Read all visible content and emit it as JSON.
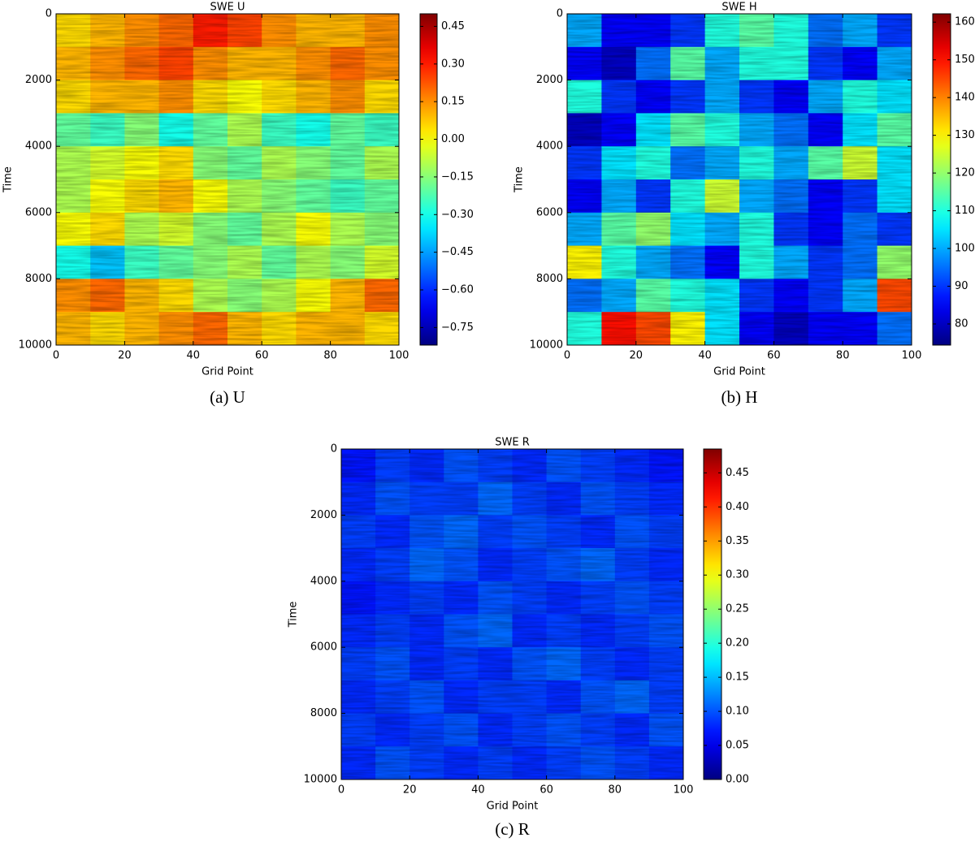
{
  "chart_data": [
    {
      "type": "heatmap",
      "title": "SWE U",
      "xlabel": "Grid Point",
      "ylabel": "Time",
      "caption": "(a) U",
      "xlim": [
        0,
        100
      ],
      "xticks": [
        0,
        20,
        40,
        60,
        80,
        100
      ],
      "ylim": [
        0,
        10000
      ],
      "y_inverted": true,
      "yticks": [
        0,
        2000,
        4000,
        6000,
        8000,
        10000
      ],
      "colormap": "jet",
      "clim": [
        -0.82,
        0.5
      ],
      "cticks": [
        {
          "value": 0.45,
          "label": "0.45"
        },
        {
          "value": 0.3,
          "label": "0.30"
        },
        {
          "value": 0.15,
          "label": "0.15"
        },
        {
          "value": 0,
          "label": "0.00"
        },
        {
          "value": -0.15,
          "label": "−0.15"
        },
        {
          "value": -0.3,
          "label": "−0.30"
        },
        {
          "value": -0.45,
          "label": "−0.45"
        },
        {
          "value": -0.6,
          "label": "−0.60"
        },
        {
          "value": -0.75,
          "label": "−0.75"
        }
      ],
      "z": [
        [
          0.05,
          0.1,
          0.15,
          0.2,
          0.3,
          0.25,
          0.15,
          0.1,
          0.1,
          0.15
        ],
        [
          0.1,
          0.15,
          0.2,
          0.25,
          0.15,
          0.1,
          0.1,
          0.15,
          0.2,
          0.15
        ],
        [
          0.05,
          0.1,
          0.1,
          0.15,
          0.05,
          0.0,
          0.05,
          0.1,
          0.15,
          0.05
        ],
        [
          -0.2,
          -0.25,
          -0.15,
          -0.3,
          -0.2,
          -0.1,
          -0.25,
          -0.3,
          -0.2,
          -0.25
        ],
        [
          -0.1,
          -0.05,
          0.0,
          0.05,
          -0.15,
          -0.2,
          -0.1,
          -0.15,
          -0.2,
          -0.1
        ],
        [
          -0.1,
          0.0,
          0.05,
          0.1,
          0.0,
          -0.1,
          -0.15,
          -0.2,
          -0.25,
          -0.2
        ],
        [
          0.0,
          0.05,
          -0.1,
          -0.05,
          -0.15,
          -0.2,
          -0.1,
          0.0,
          -0.1,
          -0.15
        ],
        [
          -0.3,
          -0.4,
          -0.25,
          -0.2,
          -0.15,
          -0.1,
          -0.2,
          -0.1,
          -0.15,
          -0.05
        ],
        [
          0.15,
          0.2,
          0.1,
          0.05,
          -0.1,
          -0.15,
          -0.1,
          0.0,
          0.1,
          0.2
        ],
        [
          0.1,
          0.05,
          0.1,
          0.15,
          0.2,
          0.1,
          0.05,
          0.1,
          0.1,
          0.05
        ]
      ]
    },
    {
      "type": "heatmap",
      "title": "SWE H",
      "xlabel": "Grid Point",
      "ylabel": "Time",
      "caption": "(b) H",
      "xlim": [
        0,
        100
      ],
      "xticks": [
        0,
        20,
        40,
        60,
        80,
        100
      ],
      "ylim": [
        0,
        10000
      ],
      "y_inverted": true,
      "yticks": [
        0,
        2000,
        4000,
        6000,
        8000,
        10000
      ],
      "colormap": "jet",
      "clim": [
        74.4,
        162.2
      ],
      "cticks": [
        160,
        150,
        140,
        130,
        120,
        110,
        100,
        90,
        80
      ],
      "z": [
        [
          100,
          85,
          85,
          90,
          110,
          115,
          110,
          95,
          100,
          90
        ],
        [
          85,
          80,
          95,
          115,
          100,
          110,
          110,
          90,
          85,
          100
        ],
        [
          110,
          90,
          85,
          90,
          100,
          90,
          85,
          100,
          110,
          105
        ],
        [
          80,
          85,
          105,
          115,
          110,
          100,
          95,
          85,
          105,
          115
        ],
        [
          90,
          105,
          110,
          95,
          100,
          110,
          100,
          115,
          125,
          105
        ],
        [
          85,
          100,
          90,
          110,
          125,
          100,
          95,
          85,
          90,
          105
        ],
        [
          100,
          115,
          120,
          105,
          100,
          110,
          90,
          85,
          95,
          90
        ],
        [
          130,
          110,
          100,
          95,
          85,
          110,
          100,
          90,
          95,
          120
        ],
        [
          95,
          100,
          115,
          110,
          105,
          90,
          85,
          90,
          100,
          145
        ],
        [
          110,
          150,
          145,
          130,
          105,
          85,
          80,
          85,
          85,
          95
        ]
      ]
    },
    {
      "type": "heatmap",
      "title": "SWE R",
      "xlabel": "Grid Point",
      "ylabel": "Time",
      "caption": "(c) R",
      "xlim": [
        0,
        100
      ],
      "xticks": [
        0,
        20,
        40,
        60,
        80,
        100
      ],
      "ylim": [
        0,
        10000
      ],
      "y_inverted": true,
      "yticks": [
        0,
        2000,
        4000,
        6000,
        8000,
        10000
      ],
      "colormap": "jet",
      "clim": [
        0,
        0.485
      ],
      "cticks": [
        {
          "value": 0.45,
          "label": "0.45"
        },
        {
          "value": 0.4,
          "label": "0.40"
        },
        {
          "value": 0.35,
          "label": "0.35"
        },
        {
          "value": 0.3,
          "label": "0.30"
        },
        {
          "value": 0.25,
          "label": "0.25"
        },
        {
          "value": 0.2,
          "label": "0.20"
        },
        {
          "value": 0.15,
          "label": "0.15"
        },
        {
          "value": 0.1,
          "label": "0.10"
        },
        {
          "value": 0.05,
          "label": "0.05"
        },
        {
          "value": 0,
          "label": "0.00"
        }
      ],
      "z": [
        [
          0.07,
          0.09,
          0.08,
          0.1,
          0.09,
          0.08,
          0.1,
          0.09,
          0.08,
          0.07
        ],
        [
          0.08,
          0.1,
          0.09,
          0.09,
          0.11,
          0.09,
          0.08,
          0.1,
          0.09,
          0.08
        ],
        [
          0.09,
          0.08,
          0.1,
          0.11,
          0.09,
          0.1,
          0.09,
          0.08,
          0.1,
          0.09
        ],
        [
          0.08,
          0.09,
          0.11,
          0.1,
          0.08,
          0.09,
          0.1,
          0.11,
          0.09,
          0.08
        ],
        [
          0.07,
          0.08,
          0.09,
          0.08,
          0.1,
          0.09,
          0.08,
          0.09,
          0.1,
          0.09
        ],
        [
          0.08,
          0.09,
          0.08,
          0.1,
          0.11,
          0.08,
          0.09,
          0.08,
          0.09,
          0.1
        ],
        [
          0.09,
          0.1,
          0.08,
          0.09,
          0.08,
          0.1,
          0.11,
          0.09,
          0.08,
          0.09
        ],
        [
          0.08,
          0.09,
          0.1,
          0.08,
          0.09,
          0.09,
          0.08,
          0.1,
          0.11,
          0.09
        ],
        [
          0.09,
          0.08,
          0.09,
          0.1,
          0.08,
          0.09,
          0.1,
          0.09,
          0.08,
          0.1
        ],
        [
          0.08,
          0.1,
          0.09,
          0.08,
          0.09,
          0.08,
          0.09,
          0.1,
          0.09,
          0.08
        ]
      ]
    }
  ]
}
